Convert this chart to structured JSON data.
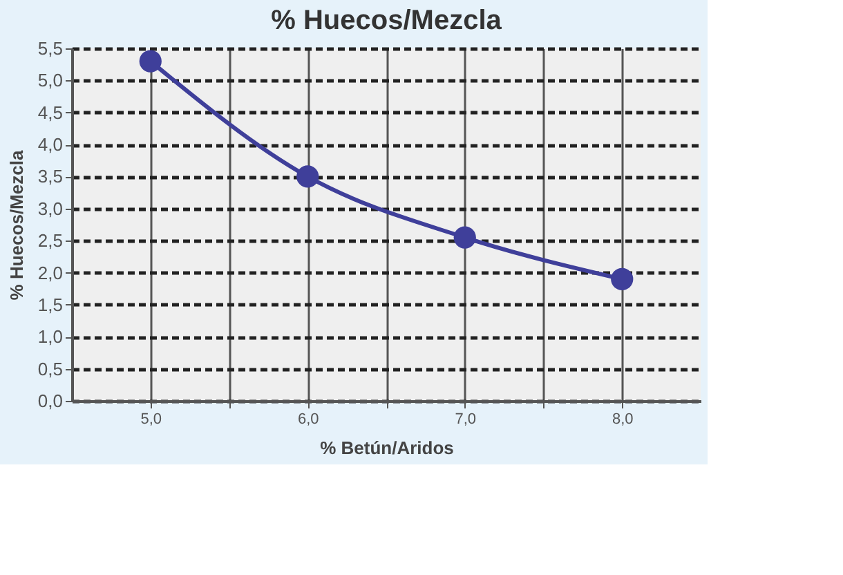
{
  "chart_data": {
    "type": "line",
    "title": "% Huecos/Mezcla",
    "xlabel": "% Betún/Aridos",
    "ylabel": "% Huecos/Mezcla",
    "x": [
      5.0,
      6.0,
      7.0,
      8.0
    ],
    "series": [
      {
        "color": "#3f3f9a",
        "values": [
          5.3,
          3.5,
          2.55,
          1.9
        ]
      }
    ],
    "xlim": [
      4.5,
      8.5
    ],
    "xticks": [
      {
        "value": 5.0,
        "label": "5,0"
      },
      {
        "value": 5.5,
        "label": null
      },
      {
        "value": 6.0,
        "label": "6,0"
      },
      {
        "value": 6.5,
        "label": null
      },
      {
        "value": 7.0,
        "label": "7,0"
      },
      {
        "value": 7.5,
        "label": null
      },
      {
        "value": 8.0,
        "label": "8,0"
      }
    ],
    "ylim": [
      0,
      5.5
    ],
    "yticks": [
      {
        "value": 0,
        "label": "0,0"
      },
      {
        "value": 0.5,
        "label": "0,5"
      },
      {
        "value": 1.0,
        "label": "1,0"
      },
      {
        "value": 1.5,
        "label": "1,5"
      },
      {
        "value": 2.0,
        "label": "2,0"
      },
      {
        "value": 2.5,
        "label": "2,5"
      },
      {
        "value": 3.0,
        "label": "3,0"
      },
      {
        "value": 3.5,
        "label": "3,5"
      },
      {
        "value": 4.0,
        "label": "4,0"
      },
      {
        "value": 4.5,
        "label": "4,5"
      },
      {
        "value": 5.0,
        "label": "5,0"
      },
      {
        "value": 5.5,
        "label": "5,5"
      }
    ],
    "grid": true,
    "marker": "circle",
    "line_style": "solid"
  }
}
